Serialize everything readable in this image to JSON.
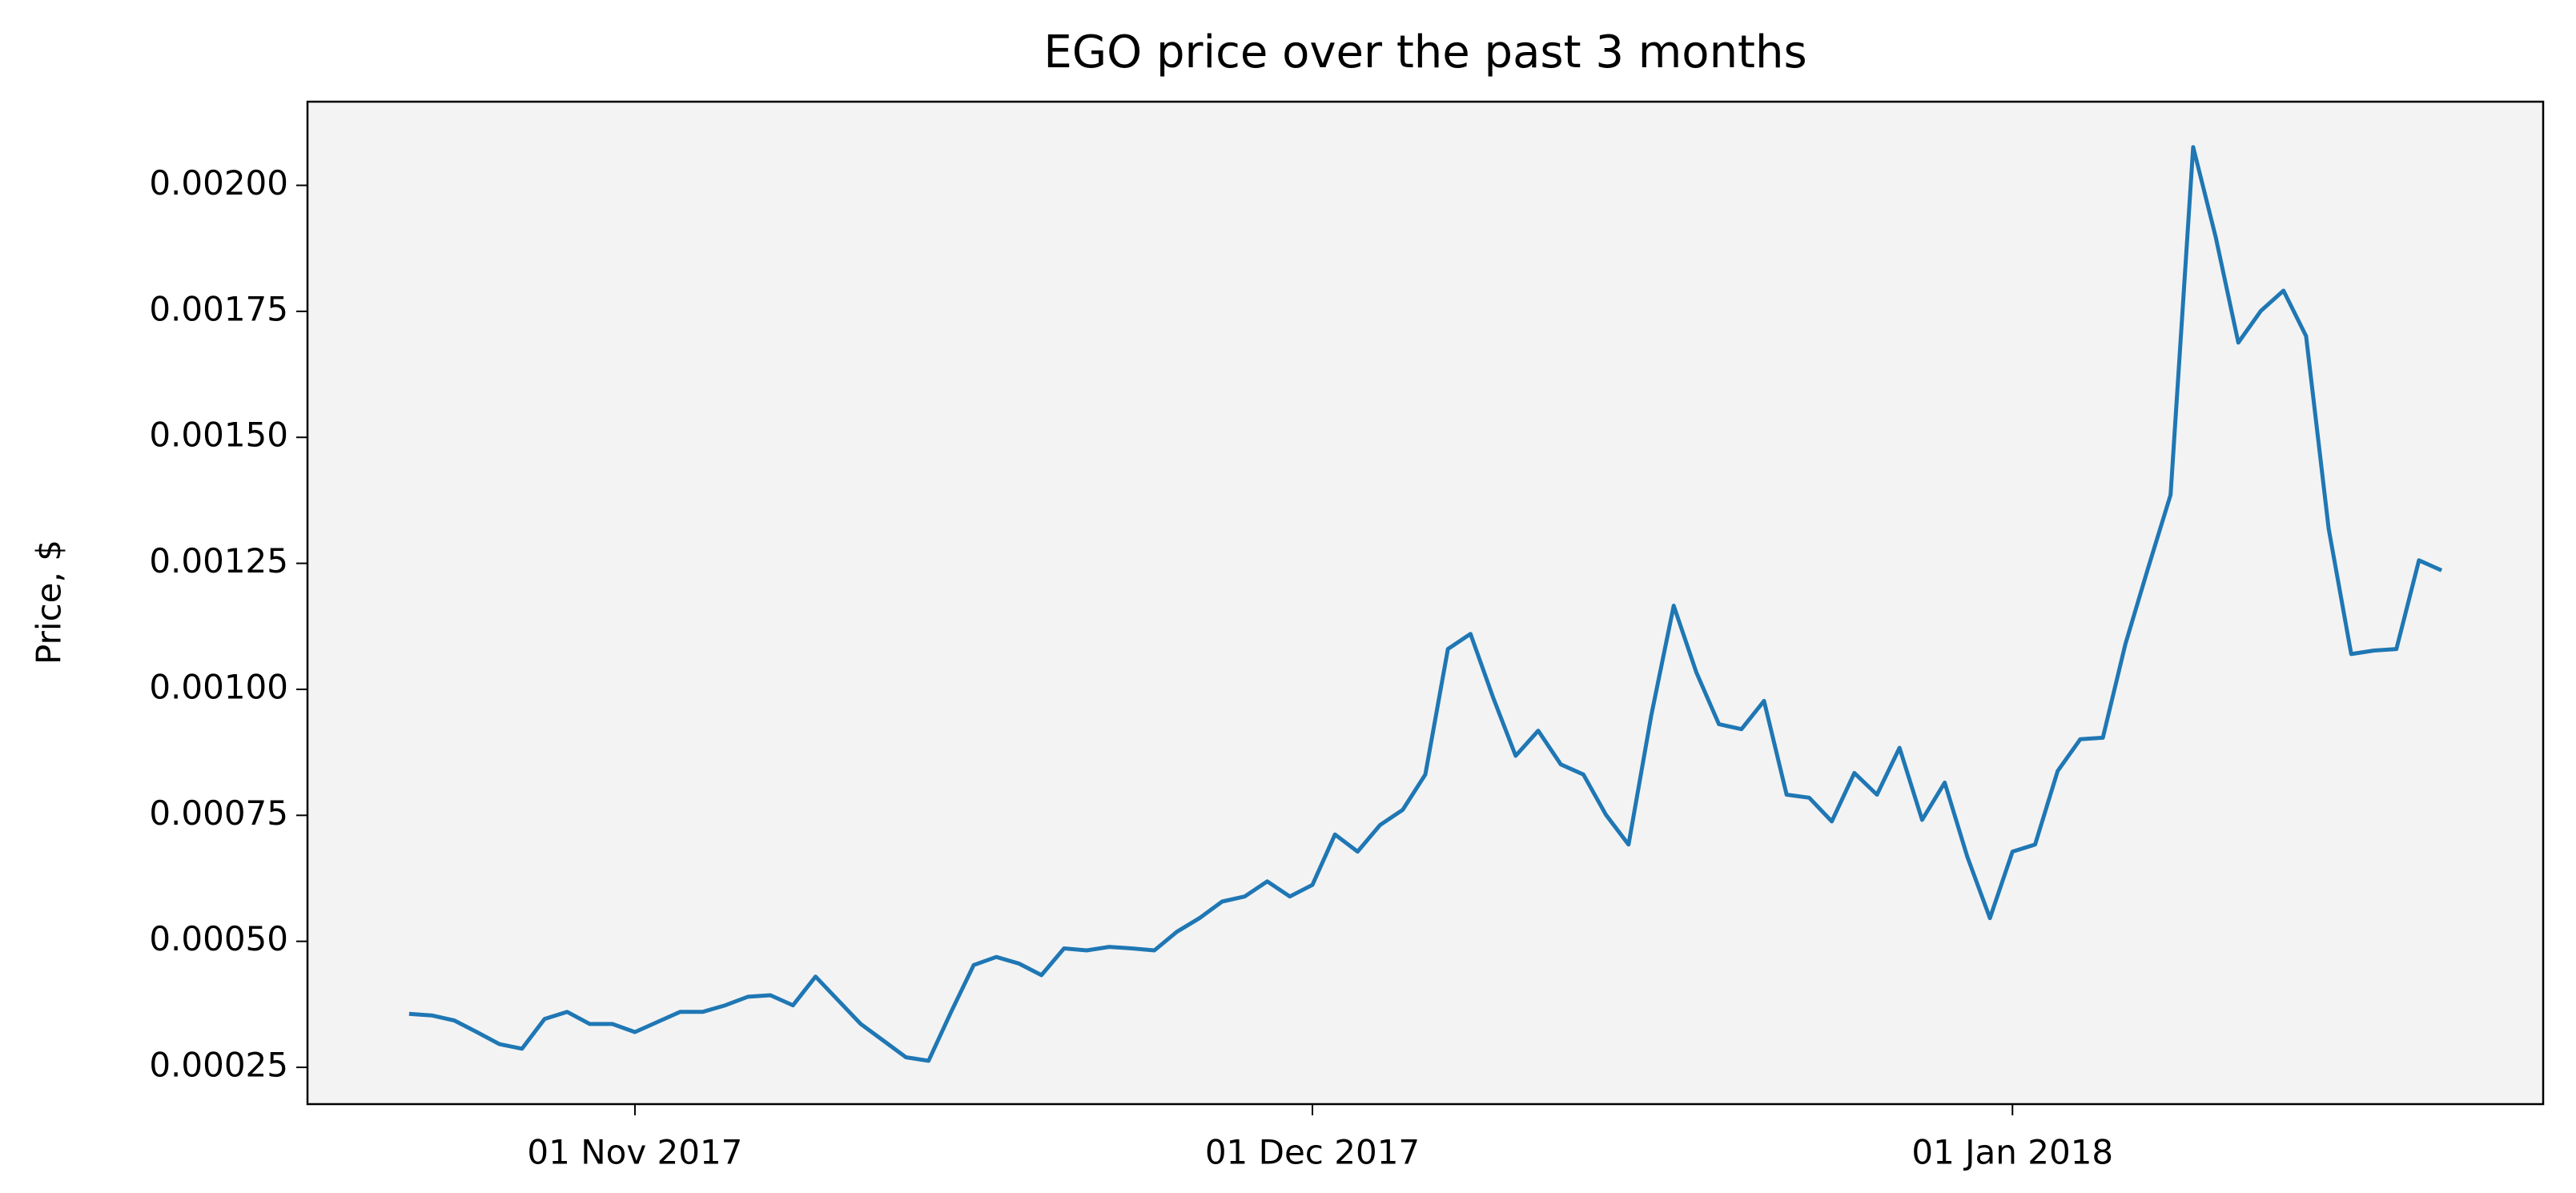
{
  "chart_data": {
    "type": "line",
    "title": "EGO price over the past 3 months",
    "y_label": "Price, $",
    "x": [
      "2017-10-22",
      "2017-10-23",
      "2017-10-24",
      "2017-10-25",
      "2017-10-26",
      "2017-10-27",
      "2017-10-28",
      "2017-10-29",
      "2017-10-30",
      "2017-10-31",
      "2017-11-01",
      "2017-11-02",
      "2017-11-03",
      "2017-11-04",
      "2017-11-05",
      "2017-11-06",
      "2017-11-07",
      "2017-11-08",
      "2017-11-09",
      "2017-11-10",
      "2017-11-11",
      "2017-11-12",
      "2017-11-13",
      "2017-11-14",
      "2017-11-15",
      "2017-11-16",
      "2017-11-17",
      "2017-11-18",
      "2017-11-19",
      "2017-11-20",
      "2017-11-21",
      "2017-11-22",
      "2017-11-23",
      "2017-11-24",
      "2017-11-25",
      "2017-11-26",
      "2017-11-27",
      "2017-11-28",
      "2017-11-29",
      "2017-11-30",
      "2017-12-01",
      "2017-12-02",
      "2017-12-03",
      "2017-12-04",
      "2017-12-05",
      "2017-12-06",
      "2017-12-07",
      "2017-12-08",
      "2017-12-09",
      "2017-12-10",
      "2017-12-11",
      "2017-12-12",
      "2017-12-13",
      "2017-12-14",
      "2017-12-15",
      "2017-12-16",
      "2017-12-17",
      "2017-12-18",
      "2017-12-19",
      "2017-12-20",
      "2017-12-21",
      "2017-12-22",
      "2017-12-23",
      "2017-12-24",
      "2017-12-25",
      "2017-12-26",
      "2017-12-27",
      "2017-12-28",
      "2017-12-29",
      "2017-12-30",
      "2017-12-31",
      "2018-01-01",
      "2018-01-02",
      "2018-01-03",
      "2018-01-04",
      "2018-01-05",
      "2018-01-06",
      "2018-01-07",
      "2018-01-08",
      "2018-01-09",
      "2018-01-10",
      "2018-01-11",
      "2018-01-12",
      "2018-01-13",
      "2018-01-14",
      "2018-01-15",
      "2018-01-16",
      "2018-01-17",
      "2018-01-18",
      "2018-01-19",
      "2018-01-20"
    ],
    "series": [
      {
        "name": "EGO",
        "color": "#1f77b4",
        "values": [
          0.000356,
          0.000353,
          0.000343,
          0.00032,
          0.000296,
          0.000287,
          0.000346,
          0.00036,
          0.000336,
          0.000336,
          0.00032,
          0.00034,
          0.00036,
          0.00036,
          0.000373,
          0.00039,
          0.000393,
          0.000373,
          0.00043,
          0.000383,
          0.000336,
          0.000303,
          0.00027,
          0.000263,
          0.00036,
          0.000453,
          0.000469,
          0.000456,
          0.000433,
          0.000486,
          0.000482,
          0.000489,
          0.000486,
          0.000482,
          0.000519,
          0.000546,
          0.000579,
          0.000589,
          0.000619,
          0.000589,
          0.000612,
          0.000712,
          0.000678,
          0.000731,
          0.000761,
          0.000831,
          0.00108,
          0.00111,
          0.000984,
          0.000868,
          0.000918,
          0.000851,
          0.000831,
          0.000751,
          0.000692,
          0.000947,
          0.001166,
          0.001034,
          0.000931,
          0.000921,
          0.000977,
          0.000791,
          0.000785,
          0.000738,
          0.000834,
          0.000791,
          0.000884,
          0.000741,
          0.000815,
          0.000668,
          0.000546,
          0.000678,
          0.000692,
          0.000838,
          0.000901,
          0.000904,
          0.00109,
          0.00124,
          0.001386,
          0.002076,
          0.001897,
          0.001688,
          0.001751,
          0.001791,
          0.001701,
          0.001319,
          0.00107,
          0.001077,
          0.00108,
          0.001256,
          0.001236
        ]
      }
    ],
    "xlim": [
      "2017-10-17T12:00Z",
      "2018-01-24T12:00Z"
    ],
    "xticks": [
      {
        "value": "2017-11-01",
        "label": "01 Nov 2017"
      },
      {
        "value": "2017-12-01",
        "label": "01 Dec 2017"
      },
      {
        "value": "2018-01-01",
        "label": "01 Jan 2018"
      }
    ],
    "ylim": [
      0.000177,
      0.002166
    ],
    "yticks": [
      0.00025,
      {
        "value": 0.0005,
        "label": "0.00050"
      },
      0.00075,
      {
        "value": 0.001,
        "label": "0.00100"
      },
      0.00125,
      {
        "value": 0.0015,
        "label": "0.00150"
      },
      0.00175,
      {
        "value": 0.002,
        "label": "0.00200"
      }
    ],
    "background": "#f3f3f3",
    "grid": false
  }
}
